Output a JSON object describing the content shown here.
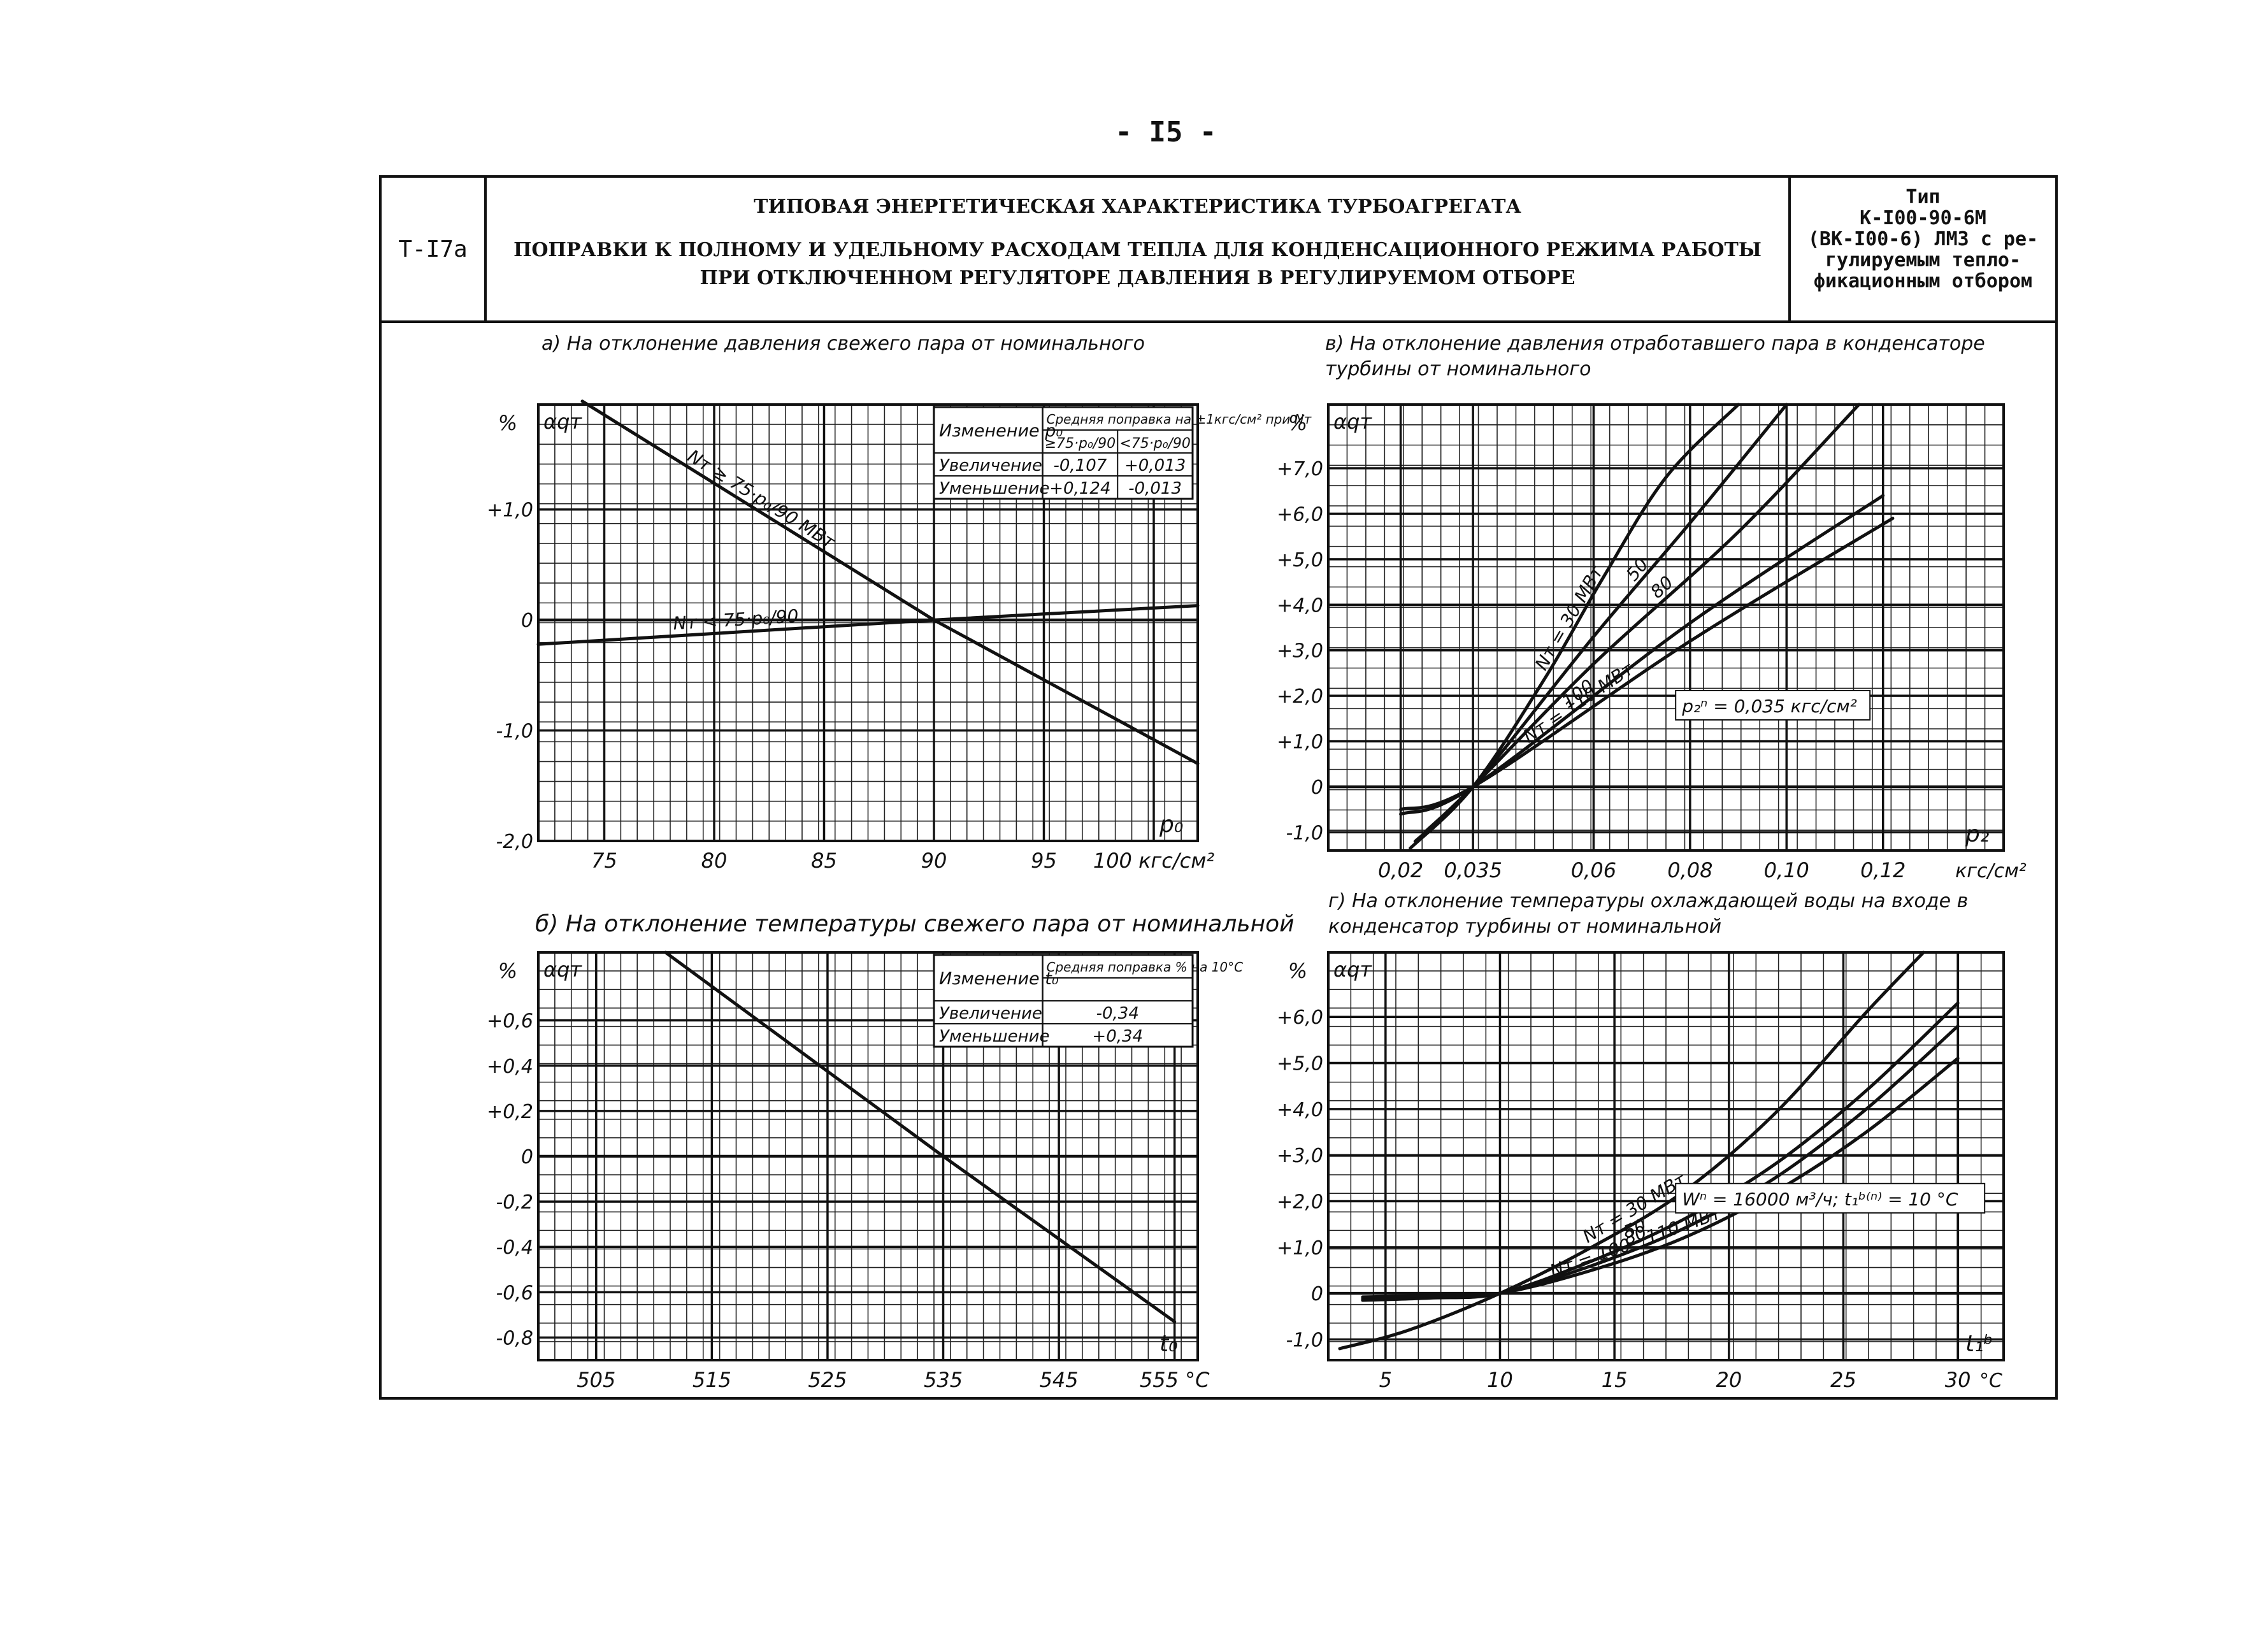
{
  "page_number": "- I5 -",
  "header": {
    "code": "Т-I7а",
    "title_line1": "ТИПОВАЯ ЭНЕРГЕТИЧЕСКАЯ ХАРАКТЕРИСТИКА ТУРБОАГРЕГАТА",
    "title_line2": "ПОПРАВКИ К ПОЛНОМУ И УДЕЛЬНОМУ РАСХОДАМ ТЕПЛА ДЛЯ КОНДЕНСАЦИОННОГО РЕЖИМА РАБОТЫ",
    "title_line3": "ПРИ ОТКЛЮЧЕННОМ РЕГУЛЯТОРЕ ДАВЛЕНИЯ В РЕГУЛИРУЕМОМ ОТБОРЕ",
    "type_lines": [
      "Тип",
      "К-I00-90-6М",
      "(ВК-I00-6) ЛМЗ с ре-",
      "гулируемым тепло-",
      "фикационным отбором"
    ]
  },
  "chart_data": [
    {
      "id": "a",
      "type": "line",
      "subtitle": "а) На отклонение давления свежего пара от номинального",
      "ylabel": "αqт",
      "yunit": "%",
      "xlabel": "p₀",
      "xunit": "кгс/см²",
      "x_range": [
        72,
        102
      ],
      "y_range": [
        -2.0,
        1.95
      ],
      "x_ticks": [
        75,
        80,
        85,
        90,
        95,
        100
      ],
      "x_tick_labels": [
        "75",
        "80",
        "85",
        "90",
        "95",
        "100 кгс/см²"
      ],
      "y_ticks": [
        1.0,
        0,
        -1.0,
        -2.0
      ],
      "y_tick_labels": [
        "+1,0",
        "0",
        "-1,0",
        "-2,0"
      ],
      "series": [
        {
          "name": "Nт ≥ 75·p₀/90 МВт",
          "x": [
            74,
            90,
            102
          ],
          "y": [
            1.98,
            0,
            -1.3
          ]
        },
        {
          "name": "Nт < 75·p₀/90",
          "x": [
            72,
            90,
            102
          ],
          "y": [
            -0.22,
            0,
            0.13
          ]
        }
      ],
      "inset_table": {
        "col0": "Изменение p₀",
        "header": "Средняя поправка на ±1кгс/см² при Nт",
        "sub_headers": [
          "≥75·p₀/90",
          "<75·p₀/90"
        ],
        "rows": [
          [
            "Увеличение",
            "-0,107",
            "+0,013"
          ],
          [
            "Уменьшение",
            "+0,124",
            "-0,013"
          ]
        ]
      }
    },
    {
      "id": "b",
      "type": "line",
      "subtitle": "б) На отклонение температуры свежего пара от номинальной",
      "ylabel": "αqт",
      "yunit": "%",
      "xlabel": "t₀",
      "xunit": "°C",
      "x_range": [
        500,
        557
      ],
      "y_range": [
        -0.9,
        0.9
      ],
      "x_ticks": [
        505,
        515,
        525,
        535,
        545,
        555
      ],
      "x_tick_labels": [
        "505",
        "515",
        "525",
        "535",
        "545",
        "555 °C"
      ],
      "y_ticks": [
        0.6,
        0.4,
        0.2,
        0,
        -0.2,
        -0.4,
        -0.6,
        -0.8
      ],
      "y_tick_labels": [
        "+0,6",
        "+0,4",
        "+0,2",
        "0",
        "-0,2",
        "-0,4",
        "-0,6",
        "-0,8"
      ],
      "series": [
        {
          "x": [
            511,
            535,
            555
          ],
          "y": [
            0.9,
            0,
            -0.73
          ]
        }
      ],
      "inset_table": {
        "col0": "Изменение t₀",
        "header": "Средняя поправка % на 10°С",
        "rows": [
          [
            "Увеличение",
            "-0,34"
          ],
          [
            "Уменьшение",
            "+0,34"
          ]
        ]
      }
    },
    {
      "id": "v",
      "type": "line",
      "subtitle": "в) На отклонение давления отработавшего пара в конденсаторе турбины от номинального",
      "ylabel": "αqт",
      "yunit": "%",
      "xlabel": "p₂",
      "xunit": "кгс/см²",
      "x_range": [
        0.005,
        0.145
      ],
      "y_range": [
        -1.4,
        8.4
      ],
      "x_ticks": [
        0.02,
        0.035,
        0.06,
        0.08,
        0.1,
        0.12
      ],
      "x_tick_labels": [
        "0,02",
        "0,035",
        "0,06",
        "0,08",
        "0,10",
        "0,12",
        "кгс/см²"
      ],
      "y_ticks": [
        7,
        6,
        5,
        4,
        3,
        2,
        1,
        0,
        -1
      ],
      "y_tick_labels": [
        "+7,0",
        "+6,0",
        "+5,0",
        "+4,0",
        "+3,0",
        "+2,0",
        "+1,0",
        "0",
        "-1,0"
      ],
      "annotation": "p₂ⁿ = 0,035 кгс/см²",
      "series": [
        {
          "name": "Nт = 30 МВт",
          "x": [
            0.022,
            0.035,
            0.05,
            0.062,
            0.075,
            0.09
          ],
          "y": [
            -1.35,
            0,
            2.4,
            4.6,
            6.8,
            8.4
          ]
        },
        {
          "name": "50",
          "x": [
            0.023,
            0.035,
            0.06,
            0.08,
            0.1
          ],
          "y": [
            -1.2,
            0,
            3.3,
            5.8,
            8.4
          ]
        },
        {
          "name": "80",
          "x": [
            0.025,
            0.035,
            0.06,
            0.09,
            0.115
          ],
          "y": [
            -1.0,
            0,
            2.7,
            5.6,
            8.4
          ]
        },
        {
          "name": "100",
          "x": [
            0.02,
            0.035,
            0.08,
            0.12
          ],
          "y": [
            -0.6,
            0,
            3.6,
            6.4
          ]
        },
        {
          "name": "Nт = 110 МВт",
          "x": [
            0.02,
            0.035,
            0.08,
            0.122
          ],
          "y": [
            -0.5,
            0,
            3.2,
            5.9
          ]
        }
      ]
    },
    {
      "id": "g",
      "type": "line",
      "subtitle": "г) На отклонение температуры охлаждающей воды на входе в конденсатор турбины от номинальной",
      "ylabel": "αqт",
      "yunit": "%",
      "xlabel": "t₁ᵇ",
      "xunit": "°C",
      "x_range": [
        2.5,
        32
      ],
      "y_range": [
        -1.45,
        7.4
      ],
      "x_ticks": [
        5,
        10,
        15,
        20,
        25,
        30
      ],
      "x_tick_labels": [
        "5",
        "10",
        "15",
        "20",
        "25",
        "30",
        "°C"
      ],
      "y_ticks": [
        6,
        5,
        4,
        3,
        2,
        1,
        0,
        -1
      ],
      "y_tick_labels": [
        "+6,0",
        "+5,0",
        "+4,0",
        "+3,0",
        "+2,0",
        "+1,0",
        "0",
        "-1,0"
      ],
      "annotation": "Wⁿ = 16000 м³/ч; t₁ᵇ⁽ⁿ⁾ = 10 °С",
      "series": [
        {
          "name": "Nт = 30 МВт",
          "x": [
            3,
            6,
            10,
            14,
            18,
            22,
            26,
            28.5
          ],
          "y": [
            -1.2,
            -0.8,
            0,
            1.0,
            2.2,
            3.9,
            6.1,
            7.4
          ]
        },
        {
          "name": "50",
          "x": [
            4,
            7,
            10,
            14,
            18,
            22,
            26,
            30
          ],
          "y": [
            -0.15,
            -0.1,
            0,
            0.7,
            1.6,
            2.8,
            4.4,
            6.3
          ]
        },
        {
          "name": "80",
          "x": [
            4,
            7,
            10,
            14,
            18,
            22,
            26,
            30
          ],
          "y": [
            -0.12,
            -0.08,
            0,
            0.6,
            1.4,
            2.5,
            4.0,
            5.8
          ]
        },
        {
          "name": "Nт = 100 - 110 МВт",
          "x": [
            4,
            7,
            10,
            14,
            18,
            22,
            26,
            30
          ],
          "y": [
            -0.08,
            -0.05,
            0,
            0.5,
            1.2,
            2.2,
            3.5,
            5.1
          ]
        }
      ]
    }
  ]
}
